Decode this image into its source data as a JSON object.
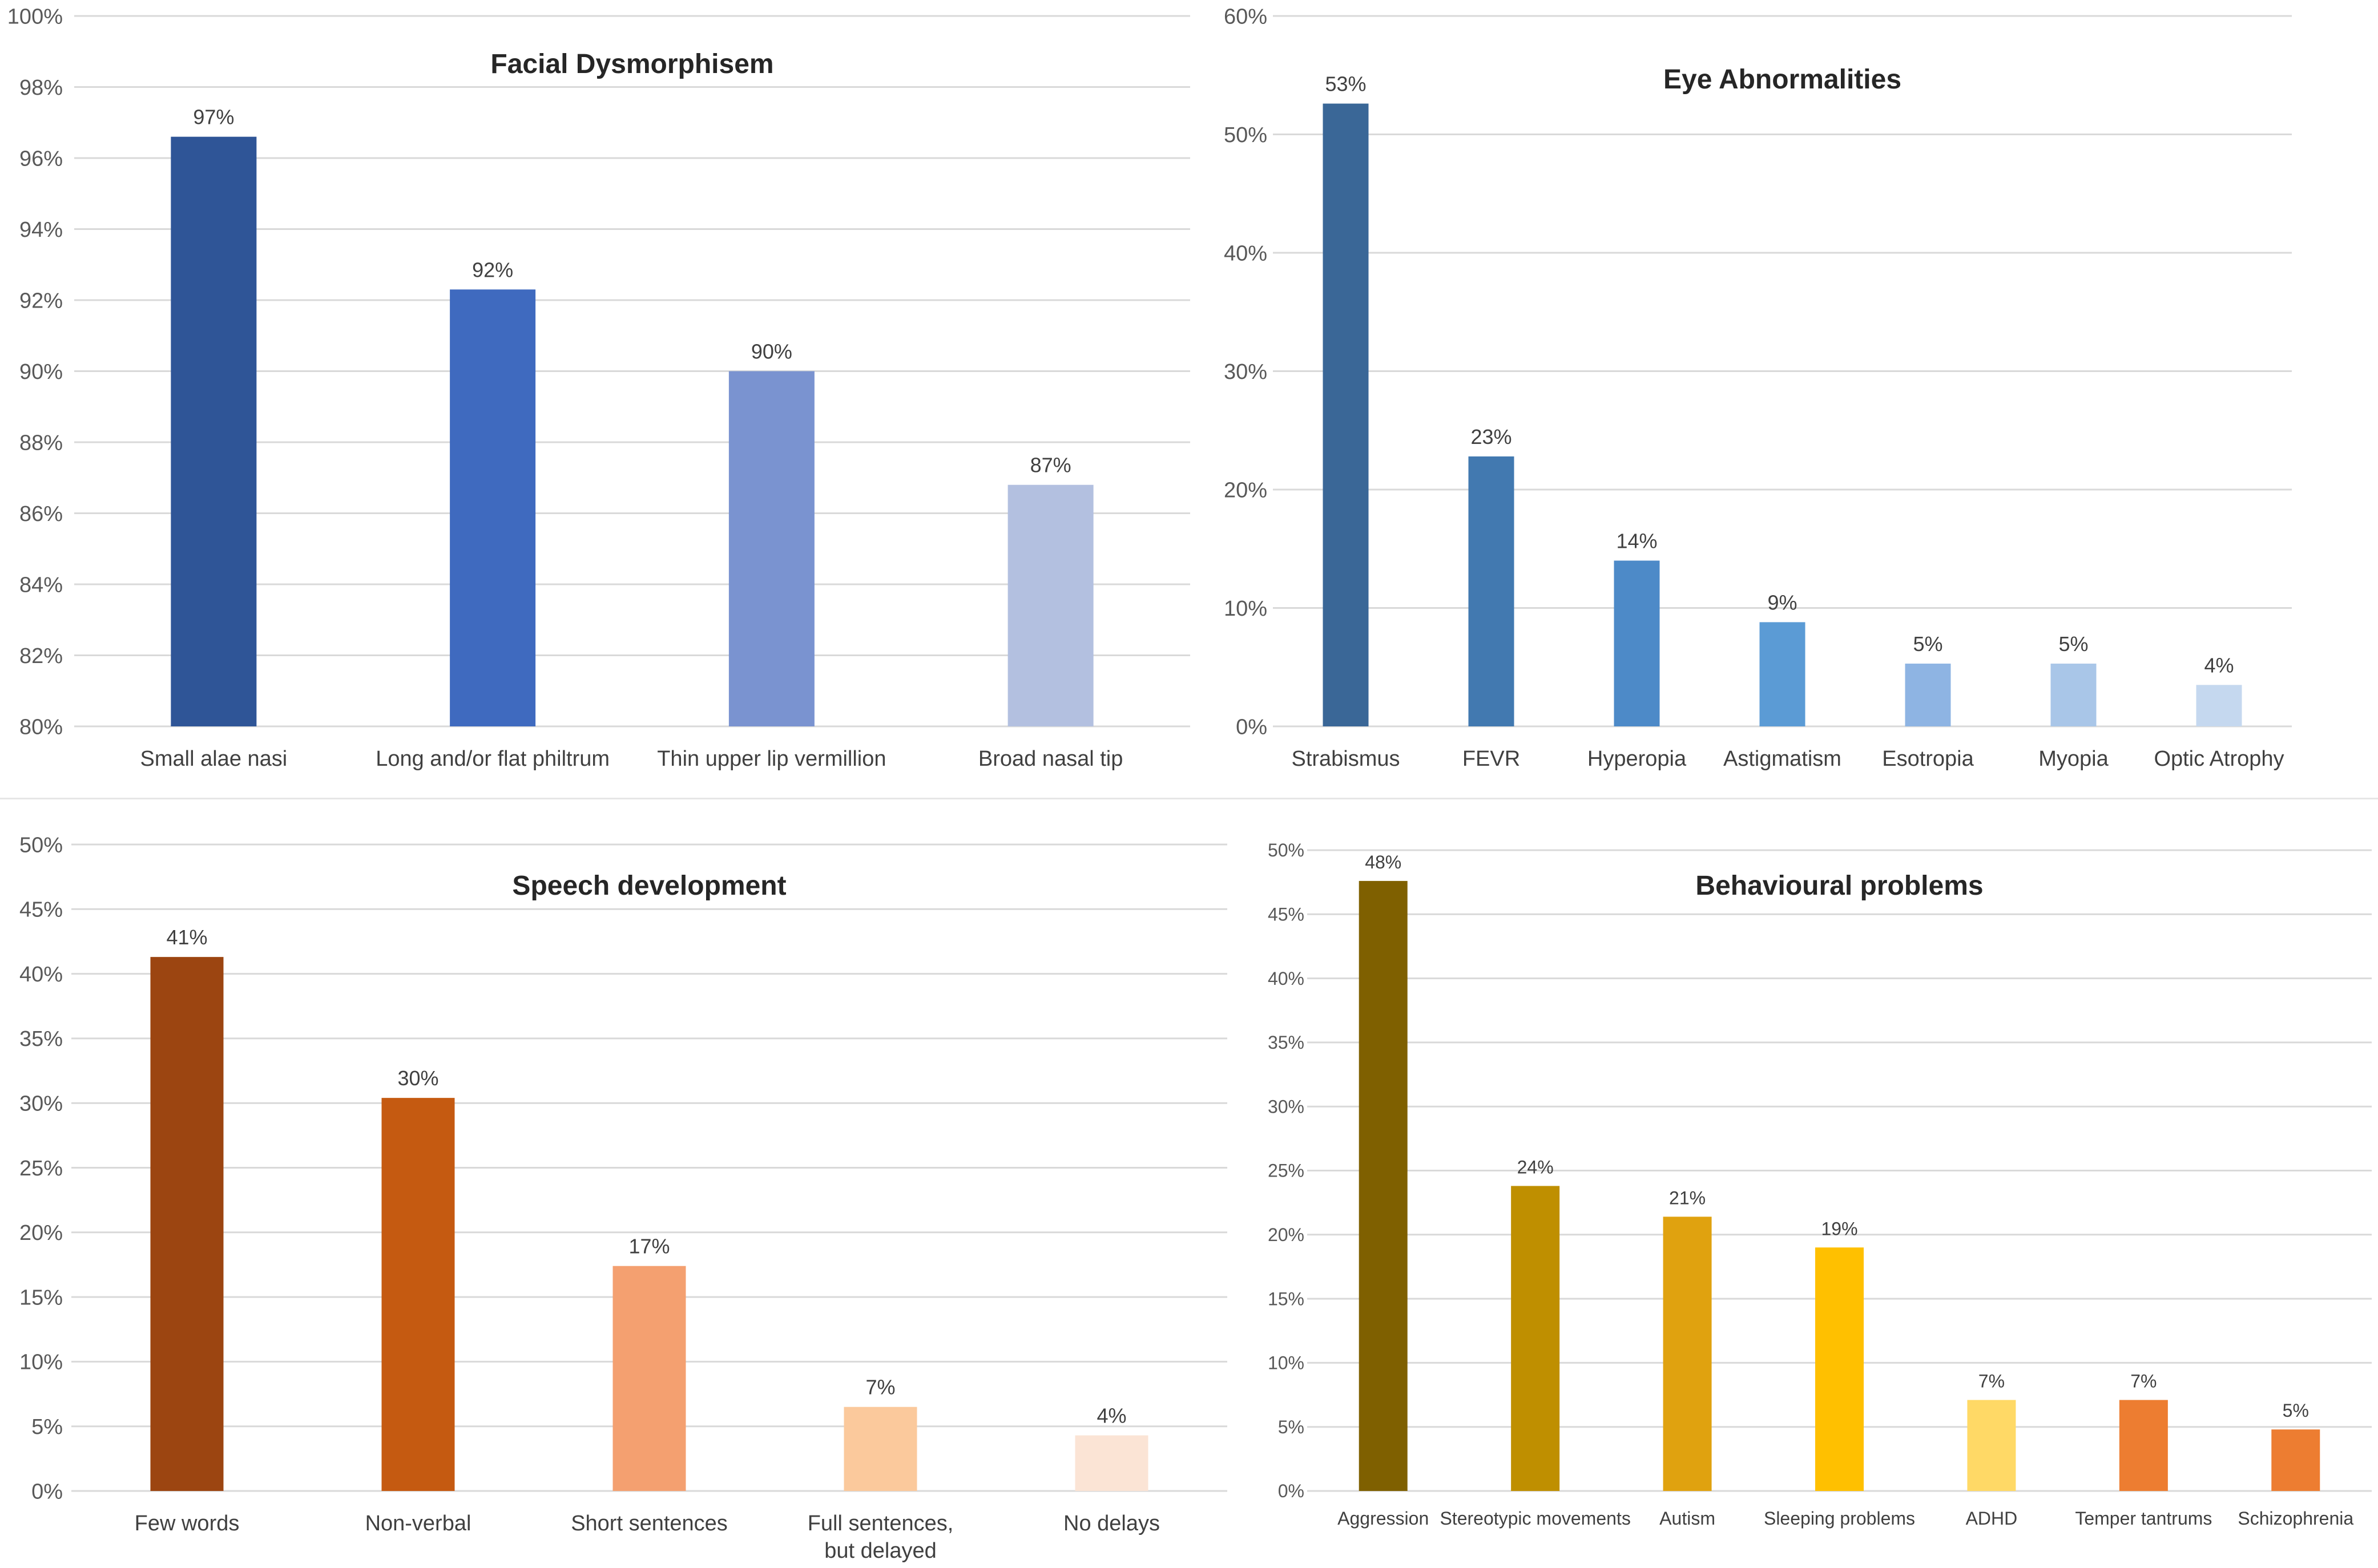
{
  "chart_data": [
    {
      "id": "facial",
      "type": "bar",
      "title": "Facial Dysmorphisem",
      "xlabel": "",
      "ylabel": "",
      "ylim": [
        80,
        100
      ],
      "ytick_step": 2,
      "ytick_suffix": "%",
      "categories": [
        "Small alae nasi",
        "Long and/or flat philtrum",
        "Thin upper lip vermillion",
        "Broad nasal tip"
      ],
      "values": [
        96.6,
        92.3,
        90.0,
        86.8
      ],
      "labels": [
        "97%",
        "92%",
        "90%",
        "87%"
      ],
      "colors": [
        "#2f5597",
        "#3f6abf",
        "#7a93d0",
        "#b3c0e0"
      ],
      "grid": true,
      "legend": "none"
    },
    {
      "id": "eye",
      "type": "bar",
      "title": "Eye Abnormalities",
      "xlabel": "",
      "ylabel": "",
      "ylim": [
        0,
        60
      ],
      "ytick_step": 10,
      "ytick_suffix": "%",
      "categories": [
        "Strabismus",
        "FEVR",
        "Hyperopia",
        "Astigmatism",
        "Esotropia",
        "Myopia",
        "Optic Atrophy"
      ],
      "values": [
        52.6,
        22.8,
        14.0,
        8.8,
        5.3,
        5.3,
        3.5
      ],
      "labels": [
        "53%",
        "23%",
        "14%",
        "9%",
        "5%",
        "5%",
        "4%"
      ],
      "colors": [
        "#3a6797",
        "#4279b0",
        "#4d8ac8",
        "#5b9bd5",
        "#8eb4e3",
        "#a9c6e8",
        "#c5d8ef"
      ],
      "grid": true,
      "legend": "none"
    },
    {
      "id": "speech",
      "type": "bar",
      "title": "Speech development",
      "xlabel": "",
      "ylabel": "",
      "ylim": [
        0,
        50
      ],
      "ytick_step": 5,
      "ytick_suffix": "%",
      "categories": [
        "Few words",
        "Non-verbal",
        "Short sentences",
        "Full sentences, but delayed",
        "No delays"
      ],
      "values": [
        41.3,
        30.4,
        17.4,
        6.5,
        4.3
      ],
      "labels": [
        "41%",
        "30%",
        "17%",
        "7%",
        "4%"
      ],
      "colors": [
        "#9c4511",
        "#c55a11",
        "#f4a070",
        "#fbc99c",
        "#fbe4d5"
      ],
      "grid": true,
      "legend": "none"
    },
    {
      "id": "behaviour",
      "type": "bar",
      "title": "Behavioural problems",
      "xlabel": "",
      "ylabel": "",
      "ylim": [
        0,
        50
      ],
      "ytick_step": 5,
      "ytick_suffix": "%",
      "categories": [
        "Aggression",
        "Stereotypic movements",
        "Autism",
        "Sleeping problems",
        "ADHD",
        "Temper tantrums",
        "Schizophrenia"
      ],
      "values": [
        47.6,
        23.8,
        21.4,
        19.0,
        7.1,
        7.1,
        4.8
      ],
      "labels": [
        "48%",
        "24%",
        "21%",
        "19%",
        "7%",
        "7%",
        "5%"
      ],
      "colors": [
        "#7f6000",
        "#bf8f00",
        "#e0a20f",
        "#ffc000",
        "#ffd966",
        "#ed7d31",
        "#ed7d31"
      ],
      "grid": true,
      "legend": "none"
    }
  ]
}
